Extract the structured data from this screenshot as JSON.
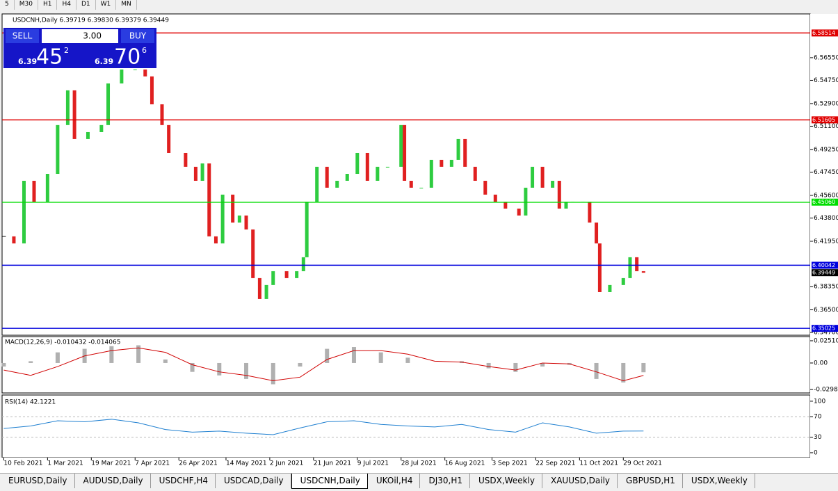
{
  "toolbar": [
    "5",
    "M30",
    "H1",
    "H4",
    "D1",
    "W1",
    "MN"
  ],
  "trade_panel": {
    "sell": "SELL",
    "lot": "3.00",
    "buy": "BUY",
    "bid_big": "6.39",
    "bid_main": "45",
    "bid_small": "2",
    "ask_big": "6.39",
    "ask_main": "70",
    "ask_small": "6"
  },
  "tabs": [
    "EURUSD,Daily",
    "AUDUSD,Daily",
    "USDCHF,H4",
    "USDCAD,Daily",
    "USDCNH,Daily",
    "UKOil,H4",
    "DJ30,H1",
    "USDX,Weekly",
    "XAUUSD,Daily",
    "GBPUSD,H1",
    "USDX,Weekly"
  ],
  "active_tab": 4,
  "chart_data": [
    {
      "type": "candlestick",
      "title": "USDCNH,Daily  6.39719 6.39830 6.39379 6.39449",
      "x": [
        0,
        3,
        6,
        9,
        13,
        16,
        19,
        21,
        25,
        29,
        31,
        35,
        39,
        42,
        44,
        47,
        49,
        54,
        57,
        59,
        61,
        63,
        65,
        68,
        70,
        72,
        74,
        76,
        78,
        80,
        84,
        87,
        89,
        90,
        93,
        96,
        99,
        102,
        105,
        108,
        111,
        114,
        118,
        119,
        121,
        124,
        127,
        130,
        133,
        135,
        137,
        140,
        143,
        146,
        149,
        153,
        155,
        157,
        160,
        163,
        165,
        167,
        169,
        172,
        174,
        176,
        177,
        180,
        184,
        186,
        188,
        190
      ],
      "close": [
        6.4234,
        6.4178,
        6.4676,
        6.451,
        6.4731,
        6.5119,
        6.5395,
        6.5008,
        6.5063,
        6.5119,
        6.545,
        6.5561,
        6.5561,
        6.5506,
        6.5284,
        6.5119,
        6.4897,
        6.4787,
        6.4676,
        6.4814,
        6.4234,
        6.4178,
        6.4566,
        6.4344,
        6.44,
        6.4289,
        6.3902,
        6.3736,
        6.3847,
        6.3957,
        6.3902,
        6.3957,
        6.4068,
        6.451,
        6.4787,
        6.4621,
        6.4676,
        6.4731,
        6.4897,
        6.4676,
        6.4787,
        6.4787,
        6.5119,
        6.4676,
        6.4621,
        6.4621,
        6.4842,
        6.4787,
        6.4842,
        6.5008,
        6.4787,
        6.4676,
        6.4566,
        6.451,
        6.4455,
        6.44,
        6.4621,
        6.4787,
        6.4621,
        6.4676,
        6.4455,
        6.451,
        6.451,
        6.451,
        6.4344,
        6.4178,
        6.3791,
        6.3847,
        6.3902,
        6.4068,
        6.3957,
        6.3945
      ],
      "up_color": "#2ecc40",
      "down_color": "#e02020",
      "xlim": [
        -0.5,
        239.5
      ],
      "ylim": [
        6.3448,
        6.6003
      ],
      "yticks": [
        {
          "value": 6.5655,
          "label": "6.56550"
        },
        {
          "value": 6.5475,
          "label": "6.54750"
        },
        {
          "value": 6.529,
          "label": "6.52900"
        },
        {
          "value": 6.511,
          "label": "6.51100"
        },
        {
          "value": 6.4925,
          "label": "6.49250"
        },
        {
          "value": 6.4745,
          "label": "6.47450"
        },
        {
          "value": 6.456,
          "label": "6.45600"
        },
        {
          "value": 6.438,
          "label": "6.43800"
        },
        {
          "value": 6.4195,
          "label": "6.41950"
        },
        {
          "value": 6.3835,
          "label": "6.38350"
        },
        {
          "value": 6.365,
          "label": "6.36500"
        },
        {
          "value": 6.347,
          "label": "6.34700"
        }
      ],
      "levels": [
        {
          "value": 6.58514,
          "label": "6.58514",
          "color": "#e00000"
        },
        {
          "value": 6.51605,
          "label": "6.51605",
          "color": "#e00000"
        },
        {
          "value": 6.4506,
          "label": "6.45060",
          "color": "#00dd00"
        },
        {
          "value": 6.40042,
          "label": "6.40042",
          "color": "#0000dd"
        },
        {
          "value": 6.35025,
          "label": "6.35025",
          "color": "#0000dd"
        }
      ],
      "current": 6.39449,
      "xticks": [
        {
          "value": 0,
          "label": "10 Feb 2021"
        },
        {
          "value": 13,
          "label": "1 Mar 2021"
        },
        {
          "value": 26,
          "label": "19 Mar 2021"
        },
        {
          "value": 39,
          "label": "7 Apr 2021"
        },
        {
          "value": 52,
          "label": "26 Apr 2021"
        },
        {
          "value": 66,
          "label": "14 May 2021"
        },
        {
          "value": 79,
          "label": "2 Jun 2021"
        },
        {
          "value": 92,
          "label": "21 Jun 2021"
        },
        {
          "value": 105,
          "label": "9 Jul 2021"
        },
        {
          "value": 118,
          "label": "28 Jul 2021"
        },
        {
          "value": 131,
          "label": "16 Aug 2021"
        },
        {
          "value": 145,
          "label": "3 Sep 2021"
        },
        {
          "value": 158,
          "label": "22 Sep 2021"
        },
        {
          "value": 171,
          "label": "11 Oct 2021"
        },
        {
          "value": 184,
          "label": "29 Oct 2021"
        }
      ]
    },
    {
      "type": "macd",
      "title": "MACD(12,26,9) -0.010432 -0.014065",
      "x": [
        0,
        8,
        16,
        24,
        32,
        40,
        48,
        56,
        64,
        72,
        80,
        88,
        96,
        104,
        112,
        120,
        128,
        136,
        144,
        152,
        160,
        168,
        176,
        184,
        190
      ],
      "series": [
        {
          "name": "MACD",
          "color": "#b0b0b0",
          "values": [
            -0.004,
            0.002,
            0.012,
            0.016,
            0.019,
            0.02,
            0.004,
            -0.01,
            -0.014,
            -0.018,
            -0.024,
            -0.004,
            0.016,
            0.018,
            0.012,
            0.006,
            0.0,
            0.002,
            -0.006,
            -0.01,
            -0.004,
            -0.002,
            -0.018,
            -0.022,
            -0.010432
          ]
        },
        {
          "name": "Signal",
          "color": "#d00000",
          "values": [
            -0.008,
            -0.014,
            -0.004,
            0.008,
            0.014,
            0.017,
            0.012,
            -0.002,
            -0.01,
            -0.014,
            -0.02,
            -0.016,
            0.004,
            0.014,
            0.014,
            0.01,
            0.002,
            0.001,
            -0.004,
            -0.008,
            0.0,
            -0.001,
            -0.01,
            -0.02,
            -0.014065
          ]
        }
      ],
      "xlim": [
        -0.5,
        239.5
      ],
      "ylim": [
        -0.0338,
        0.0298
      ],
      "yticks": [
        0.025108,
        {
          "value": 0,
          "label": "0.00"
        },
        -0.029887
      ]
    },
    {
      "type": "rsi",
      "title": "RSI(14) 42.1221",
      "x": [
        0,
        8,
        16,
        24,
        32,
        40,
        48,
        56,
        64,
        72,
        80,
        88,
        96,
        104,
        112,
        120,
        128,
        136,
        144,
        152,
        160,
        168,
        176,
        184,
        190
      ],
      "series": [
        {
          "name": "RSI",
          "color": "#1e7fd0",
          "values": [
            47,
            52,
            62,
            60,
            65,
            58,
            45,
            40,
            42,
            38,
            35,
            48,
            60,
            62,
            55,
            52,
            50,
            55,
            45,
            40,
            58,
            50,
            38,
            42,
            42.1221
          ]
        }
      ],
      "xlim": [
        -0.5,
        239.5
      ],
      "ylim": [
        -9.5,
        112
      ],
      "yticks": [
        100,
        70,
        30,
        0
      ]
    }
  ]
}
